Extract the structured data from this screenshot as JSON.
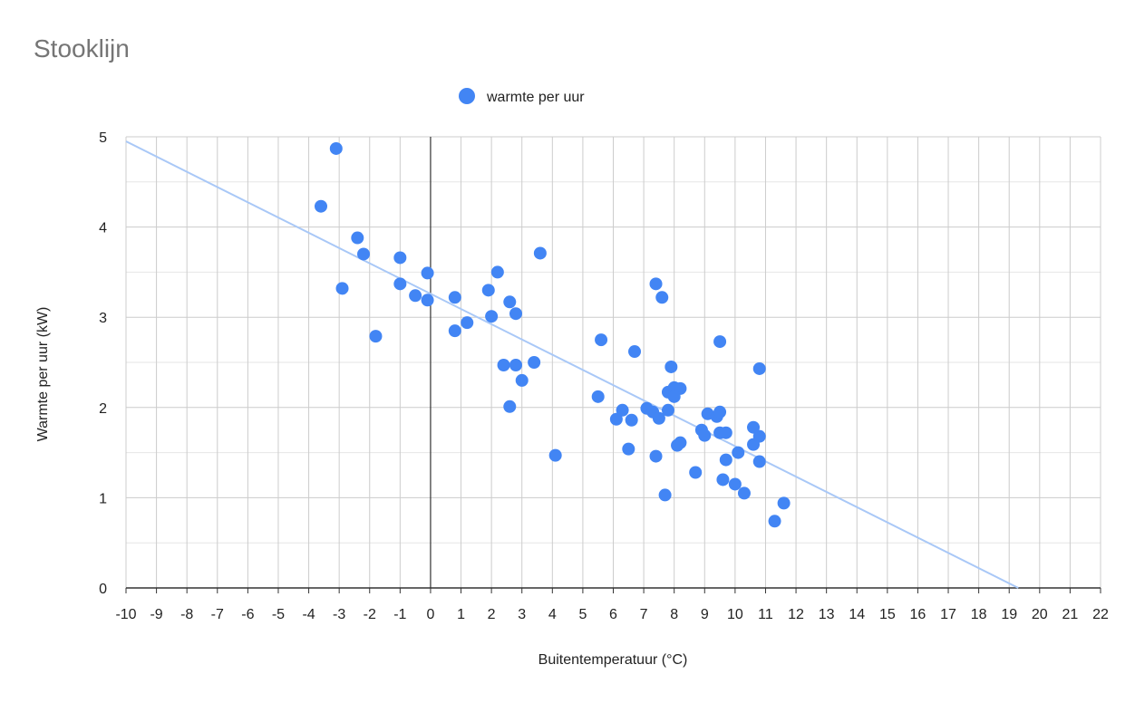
{
  "chart_data": {
    "type": "scatter",
    "title": "Stooklijn",
    "xlabel": "Buitentemperatuur (°C)",
    "ylabel": "Warmte per uur (kW)",
    "xlim": [
      -10,
      22
    ],
    "ylim": [
      0,
      5
    ],
    "x_ticks": [
      -10,
      -9,
      -8,
      -7,
      -6,
      -5,
      -4,
      -3,
      -2,
      -1,
      0,
      1,
      2,
      3,
      4,
      5,
      6,
      7,
      8,
      9,
      10,
      11,
      12,
      13,
      14,
      15,
      16,
      17,
      18,
      19,
      20,
      21,
      22
    ],
    "y_ticks": [
      0,
      1,
      2,
      3,
      4,
      5
    ],
    "grid": true,
    "legend_position": "top",
    "series": [
      {
        "name": "warmte per uur",
        "color": "#4285f4",
        "points": [
          [
            -3.1,
            4.87
          ],
          [
            -3.6,
            4.23
          ],
          [
            -2.4,
            3.88
          ],
          [
            -2.2,
            3.7
          ],
          [
            -2.9,
            3.32
          ],
          [
            -1.0,
            3.66
          ],
          [
            -1.0,
            3.37
          ],
          [
            -0.5,
            3.24
          ],
          [
            -0.1,
            3.49
          ],
          [
            -0.1,
            3.19
          ],
          [
            -1.8,
            2.79
          ],
          [
            0.8,
            3.22
          ],
          [
            1.2,
            2.94
          ],
          [
            0.8,
            2.85
          ],
          [
            1.9,
            3.3
          ],
          [
            2.2,
            3.5
          ],
          [
            2.0,
            3.01
          ],
          [
            2.6,
            3.17
          ],
          [
            2.8,
            3.04
          ],
          [
            3.6,
            3.71
          ],
          [
            2.4,
            2.47
          ],
          [
            2.8,
            2.47
          ],
          [
            3.4,
            2.5
          ],
          [
            3.0,
            2.3
          ],
          [
            2.6,
            2.01
          ],
          [
            4.1,
            1.47
          ],
          [
            5.5,
            2.12
          ],
          [
            5.6,
            2.75
          ],
          [
            6.7,
            2.62
          ],
          [
            6.1,
            1.87
          ],
          [
            6.3,
            1.97
          ],
          [
            6.6,
            1.86
          ],
          [
            6.5,
            1.54
          ],
          [
            7.1,
            1.99
          ],
          [
            7.3,
            1.95
          ],
          [
            7.5,
            1.88
          ],
          [
            7.4,
            3.37
          ],
          [
            7.6,
            3.22
          ],
          [
            7.9,
            2.45
          ],
          [
            7.8,
            2.17
          ],
          [
            8.0,
            2.22
          ],
          [
            8.2,
            2.21
          ],
          [
            8.0,
            2.12
          ],
          [
            7.8,
            1.97
          ],
          [
            8.1,
            1.58
          ],
          [
            8.2,
            1.61
          ],
          [
            7.4,
            1.46
          ],
          [
            8.7,
            1.28
          ],
          [
            7.7,
            1.03
          ],
          [
            8.9,
            1.75
          ],
          [
            9.0,
            1.69
          ],
          [
            9.1,
            1.93
          ],
          [
            9.4,
            1.9
          ],
          [
            9.5,
            1.95
          ],
          [
            9.5,
            2.73
          ],
          [
            9.5,
            1.72
          ],
          [
            9.7,
            1.72
          ],
          [
            9.7,
            1.42
          ],
          [
            9.6,
            1.2
          ],
          [
            10.0,
            1.15
          ],
          [
            10.3,
            1.05
          ],
          [
            10.1,
            1.5
          ],
          [
            10.6,
            1.78
          ],
          [
            10.6,
            1.59
          ],
          [
            10.8,
            1.68
          ],
          [
            10.8,
            1.4
          ],
          [
            10.8,
            2.43
          ],
          [
            11.3,
            0.74
          ],
          [
            11.6,
            0.94
          ]
        ]
      }
    ],
    "trendline": {
      "type": "linear",
      "color": "#a9c8f7",
      "start": [
        -10,
        4.95
      ],
      "end": [
        19.3,
        0
      ]
    }
  }
}
